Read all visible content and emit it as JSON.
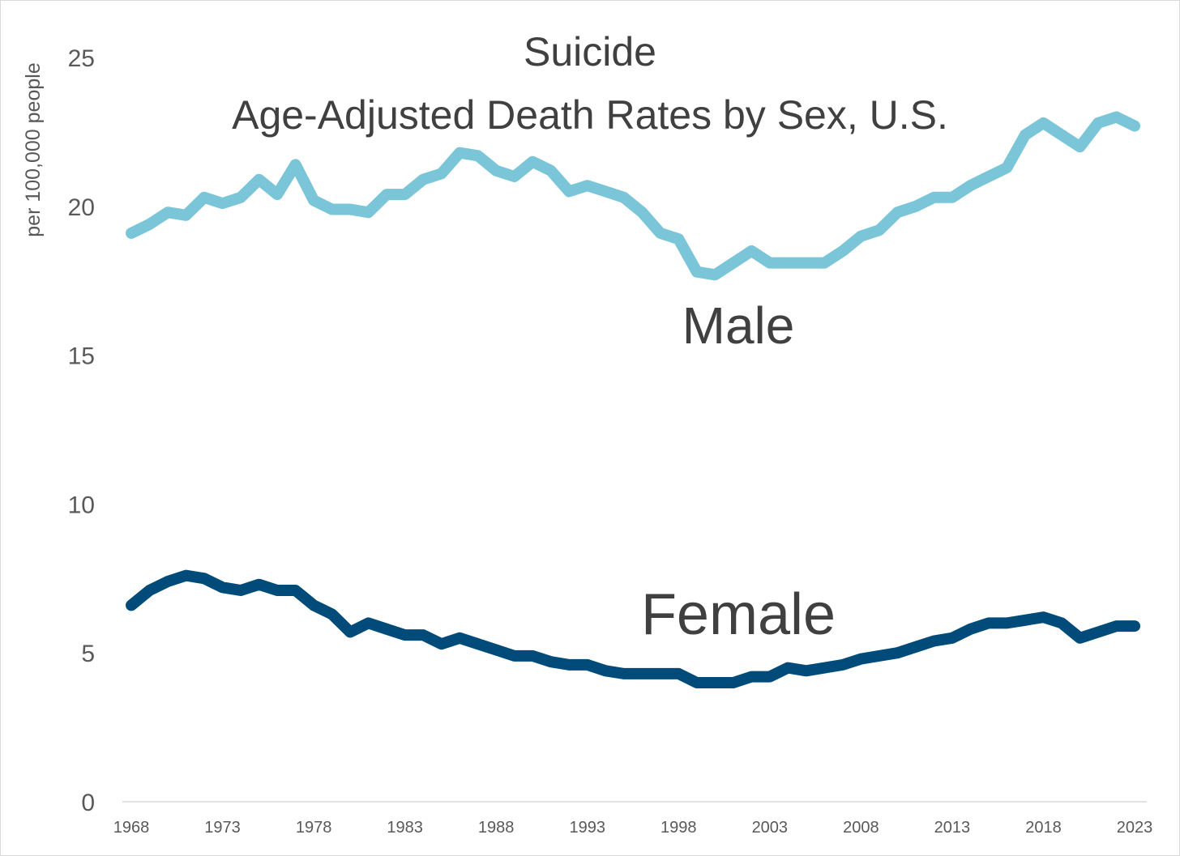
{
  "chart_data": {
    "type": "line",
    "title": "Suicide",
    "subtitle": "Age-Adjusted Death Rates by Sex, U.S.",
    "ylabel": "per 100,000 people",
    "xlabel": "",
    "ylim": [
      0,
      25
    ],
    "xlim": [
      1968,
      2023
    ],
    "yticks": [
      0,
      5,
      10,
      15,
      20,
      25
    ],
    "xticks": [
      1968,
      1973,
      1978,
      1983,
      1988,
      1993,
      1998,
      2003,
      2008,
      2013,
      2018,
      2023
    ],
    "grid": false,
    "legend": "none",
    "x": [
      1968,
      1969,
      1970,
      1971,
      1972,
      1973,
      1974,
      1975,
      1976,
      1977,
      1978,
      1979,
      1980,
      1981,
      1982,
      1983,
      1984,
      1985,
      1986,
      1987,
      1988,
      1989,
      1990,
      1991,
      1992,
      1993,
      1994,
      1995,
      1996,
      1997,
      1998,
      1999,
      2000,
      2001,
      2002,
      2003,
      2004,
      2005,
      2006,
      2007,
      2008,
      2009,
      2010,
      2011,
      2012,
      2013,
      2014,
      2015,
      2016,
      2017,
      2018,
      2019,
      2020,
      2021,
      2022,
      2023
    ],
    "series": [
      {
        "name": "Male",
        "color": "#7ac5d8",
        "values": [
          19.1,
          19.4,
          19.8,
          19.7,
          20.3,
          20.1,
          20.3,
          20.9,
          20.4,
          21.4,
          20.2,
          19.9,
          19.9,
          19.8,
          20.4,
          20.4,
          20.9,
          21.1,
          21.8,
          21.7,
          21.2,
          21.0,
          21.5,
          21.2,
          20.5,
          20.7,
          20.5,
          20.3,
          19.8,
          19.1,
          18.9,
          17.8,
          17.7,
          18.1,
          18.5,
          18.1,
          18.1,
          18.1,
          18.1,
          18.5,
          19.0,
          19.2,
          19.8,
          20.0,
          20.3,
          20.3,
          20.7,
          21.0,
          21.3,
          22.4,
          22.8,
          22.4,
          22.0,
          22.8,
          23.0,
          22.7
        ]
      },
      {
        "name": "Female",
        "color": "#004b7a",
        "values": [
          6.6,
          7.1,
          7.4,
          7.6,
          7.5,
          7.2,
          7.1,
          7.3,
          7.1,
          7.1,
          6.6,
          6.3,
          5.7,
          6.0,
          5.8,
          5.6,
          5.6,
          5.3,
          5.5,
          5.3,
          5.1,
          4.9,
          4.9,
          4.7,
          4.6,
          4.6,
          4.4,
          4.3,
          4.3,
          4.3,
          4.3,
          4.0,
          4.0,
          4.0,
          4.2,
          4.2,
          4.5,
          4.4,
          4.5,
          4.6,
          4.8,
          4.9,
          5.0,
          5.2,
          5.4,
          5.5,
          5.8,
          6.0,
          6.0,
          6.1,
          6.2,
          6.0,
          5.5,
          5.7,
          5.9,
          5.9
        ]
      }
    ]
  }
}
